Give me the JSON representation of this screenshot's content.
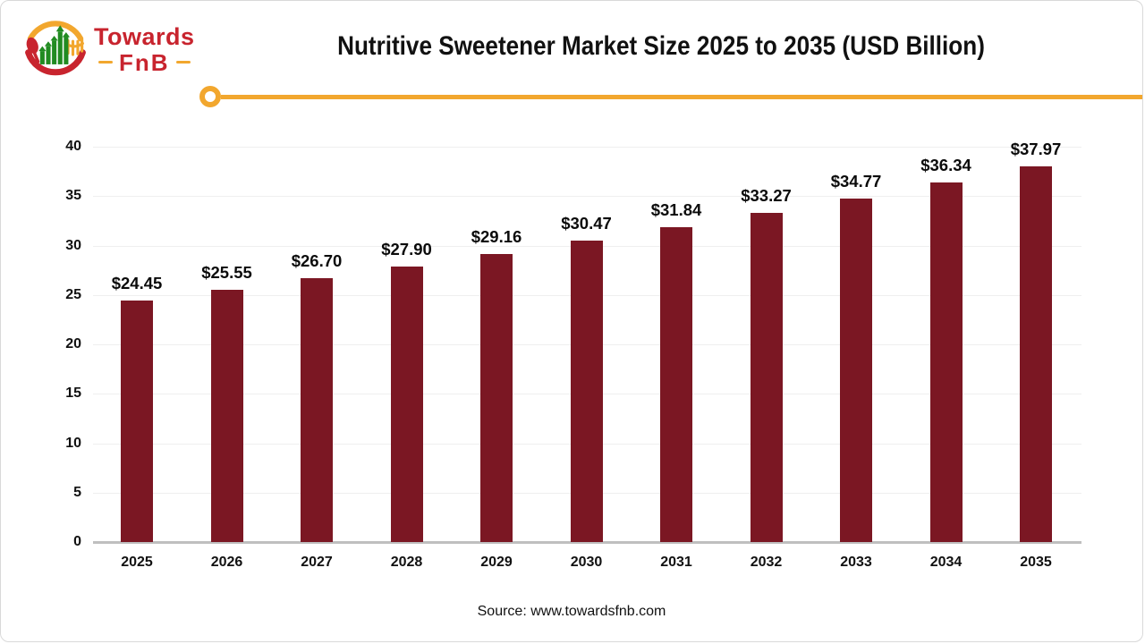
{
  "logo": {
    "brand_top": "Towards",
    "brand_bottom": "FnB"
  },
  "header": {
    "title": "Nutritive Sweetener Market Size 2025 to 2035 (USD Billion)"
  },
  "footer": {
    "source_label": "Source: www.towardsfnb.com"
  },
  "colors": {
    "bar": "#7B1723",
    "accent_yellow": "#F2A72E",
    "brand_red": "#C8242E",
    "brand_green": "#218B21",
    "axis_line": "#BFBFBF",
    "gridline": "#EFEFEF"
  },
  "chart_data": {
    "type": "bar",
    "title": "Nutritive Sweetener Market Size 2025 to 2035 (USD Billion)",
    "categories": [
      "2025",
      "2026",
      "2027",
      "2028",
      "2029",
      "2030",
      "2031",
      "2032",
      "2033",
      "2034",
      "2035"
    ],
    "values": [
      24.45,
      25.55,
      26.7,
      27.9,
      29.16,
      30.47,
      31.84,
      33.27,
      34.77,
      36.34,
      37.97
    ],
    "data_labels": [
      "$24.45",
      "$25.55",
      "$26.70",
      "$27.90",
      "$29.16",
      "$30.47",
      "$31.84",
      "$33.27",
      "$34.77",
      "$36.34",
      "$37.97"
    ],
    "xlabel": "",
    "ylabel": "",
    "ylim": [
      0,
      40
    ],
    "ytick_step": 5,
    "ytick_labels": [
      "0",
      "5",
      "10",
      "15",
      "20",
      "25",
      "30",
      "35",
      "40"
    ],
    "grid": true,
    "legend": false,
    "bar_color": "#7B1723"
  }
}
